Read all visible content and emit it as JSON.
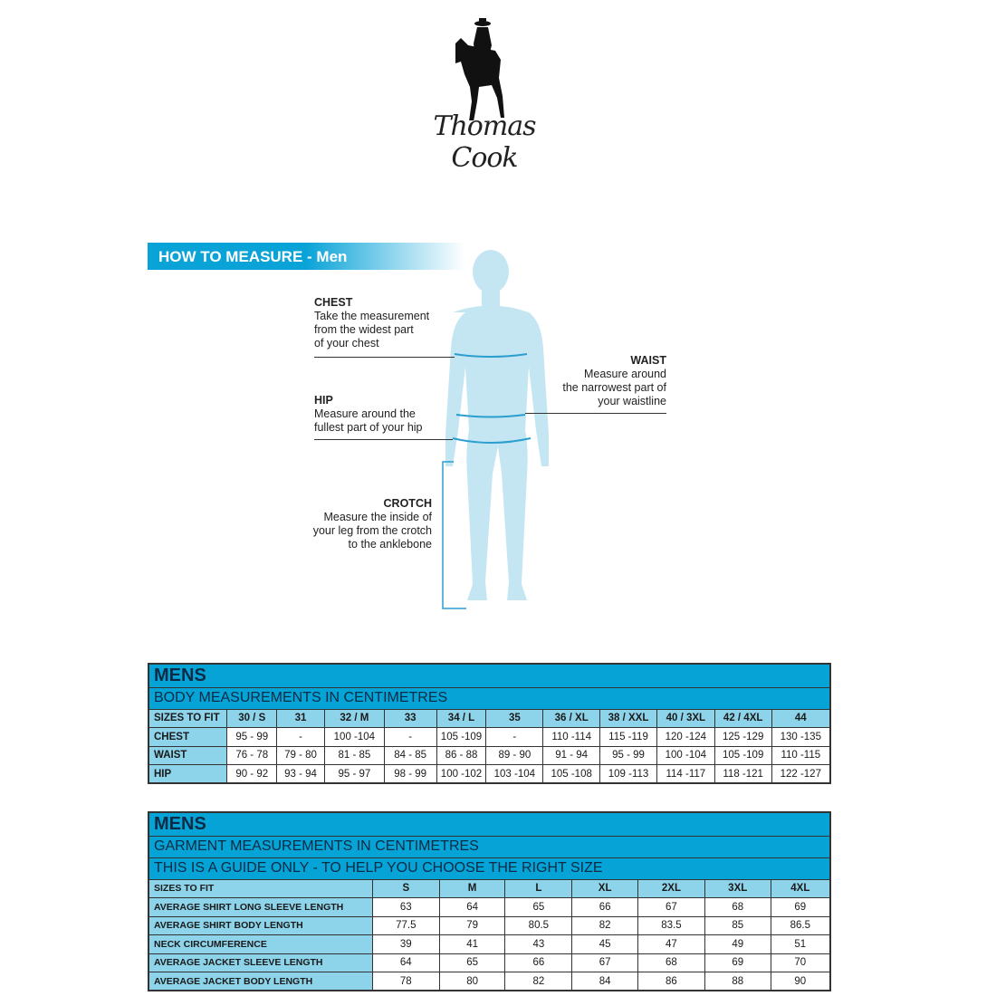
{
  "logo": {
    "brand": "Thomas Cook"
  },
  "measure": {
    "title": "HOW TO MEASURE - Men",
    "chest": {
      "title": "CHEST",
      "lines": [
        "Take the measurement",
        "from the widest part",
        "of your chest"
      ]
    },
    "waist": {
      "title": "WAIST",
      "lines": [
        "Measure around",
        "the narrowest part of",
        "your waistline"
      ]
    },
    "hip": {
      "title": "HIP",
      "lines": [
        "Measure around the",
        "fullest part of your hip"
      ]
    },
    "crotch": {
      "title": "CROTCH",
      "lines": [
        "Measure the inside of",
        "your leg from the crotch",
        "to the anklebone"
      ]
    }
  },
  "colors": {
    "header": "#05a3d6",
    "label": "#8dd3ea",
    "figure": "#c4e5f2"
  },
  "body_table": {
    "title": "MENS",
    "subtitle": "BODY MEASUREMENTS IN CENTIMETRES",
    "header": [
      "SIZES TO FIT",
      "30 / S",
      "31",
      "32 / M",
      "33",
      "34 / L",
      "35",
      "36 / XL",
      "38 / XXL",
      "40 / 3XL",
      "42 / 4XL",
      "44"
    ],
    "rows": [
      [
        "CHEST",
        "95 - 99",
        "-",
        "100 -104",
        "-",
        "105 -109",
        "-",
        "110 -114",
        "115 -119",
        "120 -124",
        "125 -129",
        "130 -135"
      ],
      [
        "WAIST",
        "76 - 78",
        "79 - 80",
        "81 - 85",
        "84 - 85",
        "86 - 88",
        "89 - 90",
        "91 - 94",
        "95 - 99",
        "100 -104",
        "105 -109",
        "110 -115"
      ],
      [
        "HIP",
        "90 - 92",
        "93 - 94",
        "95 - 97",
        "98 - 99",
        "100 -102",
        "103 -104",
        "105 -108",
        "109 -113",
        "114 -117",
        "118 -121",
        "122 -127"
      ]
    ]
  },
  "garment_table": {
    "title": "MENS",
    "subtitle": "GARMENT MEASUREMENTS IN CENTIMETRES",
    "note": "THIS IS A GUIDE ONLY - TO HELP YOU CHOOSE THE RIGHT SIZE",
    "header": [
      "SIZES TO FIT",
      "S",
      "M",
      "L",
      "XL",
      "2XL",
      "3XL",
      "4XL"
    ],
    "rows": [
      [
        "AVERAGE SHIRT LONG SLEEVE LENGTH",
        "63",
        "64",
        "65",
        "66",
        "67",
        "68",
        "69"
      ],
      [
        "AVERAGE SHIRT BODY LENGTH",
        "77.5",
        "79",
        "80.5",
        "82",
        "83.5",
        "85",
        "86.5"
      ],
      [
        "NECK CIRCUMFERENCE",
        "39",
        "41",
        "43",
        "45",
        "47",
        "49",
        "51"
      ],
      [
        "AVERAGE JACKET SLEEVE LENGTH",
        "64",
        "65",
        "66",
        "67",
        "68",
        "69",
        "70"
      ],
      [
        "AVERAGE JACKET BODY LENGTH",
        "78",
        "80",
        "82",
        "84",
        "86",
        "88",
        "90"
      ]
    ]
  }
}
